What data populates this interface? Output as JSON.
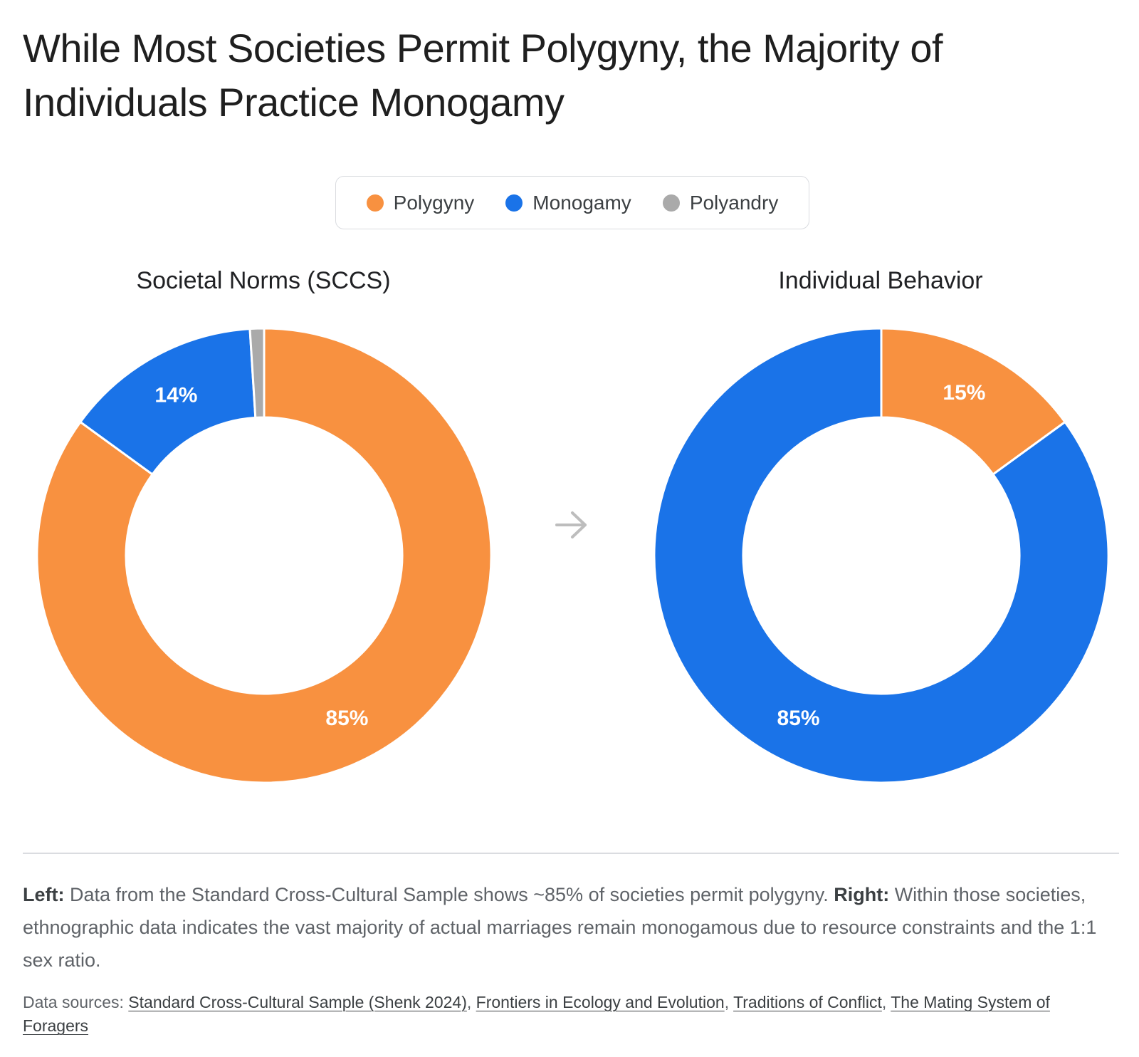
{
  "title": "While Most Societies Permit Polygyny, the Majority of Individuals Practice Monogamy",
  "legend": {
    "items": [
      {
        "label": "Polygyny",
        "color": "#F89140"
      },
      {
        "label": "Monogamy",
        "color": "#1A73E8"
      },
      {
        "label": "Polyandry",
        "color": "#AAAAAA"
      }
    ]
  },
  "chart_data": [
    {
      "type": "pie",
      "title": "Societal Norms (SCCS)",
      "categories": [
        "Polygyny",
        "Monogamy",
        "Polyandry"
      ],
      "values": [
        85,
        14,
        1
      ],
      "data_labels": [
        "85%",
        "14%",
        ""
      ],
      "colors": [
        "#F89140",
        "#1A73E8",
        "#AAAAAA"
      ]
    },
    {
      "type": "pie",
      "title": "Individual Behavior",
      "categories": [
        "Polygyny",
        "Monogamy"
      ],
      "values": [
        15,
        85
      ],
      "data_labels": [
        "15%",
        "85%"
      ],
      "colors": [
        "#F89140",
        "#1A73E8"
      ]
    }
  ],
  "arrow_icon": "arrow-right-icon",
  "caption": {
    "left_label": "Left:",
    "left_text": " Data from the Standard Cross-Cultural Sample shows ~85% of societies permit polygyny. ",
    "right_label": "Right:",
    "right_text": " Within those societies, ethnographic data indicates the vast majority of actual marriages remain monogamous due to resource constraints and the 1:1 sex ratio."
  },
  "sources": {
    "prefix": "Data sources: ",
    "links": [
      "Standard Cross-Cultural Sample (Shenk 2024)",
      "Frontiers in Ecology and Evolution",
      "Traditions of Conflict",
      "The Mating System of Foragers"
    ]
  }
}
